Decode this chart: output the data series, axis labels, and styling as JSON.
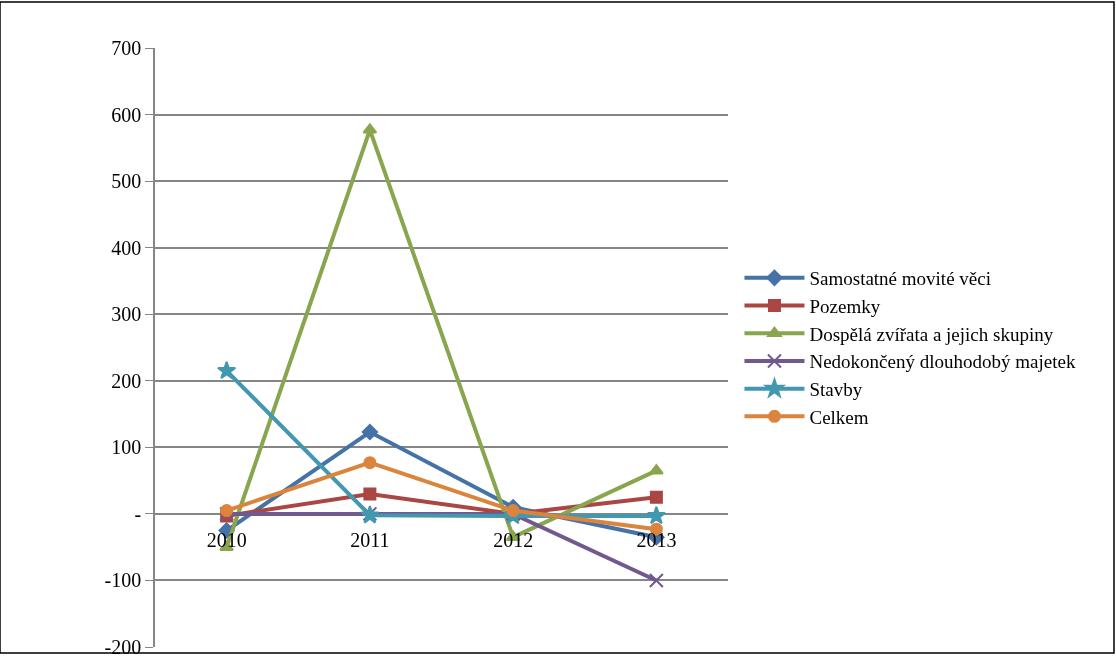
{
  "chart_data": {
    "type": "line",
    "categories": [
      "2010",
      "2011",
      "2012",
      "2013"
    ],
    "series": [
      {
        "name": "Samostatné movité věci",
        "color": "#4572a7",
        "marker": "diamond",
        "values": [
          -25,
          123,
          10,
          -35
        ]
      },
      {
        "name": "Pozemky",
        "color": "#aa4643",
        "marker": "square",
        "values": [
          -3,
          30,
          0,
          25
        ]
      },
      {
        "name": "Dospělá zvířata a jejich skupiny",
        "color": "#89a54e",
        "marker": "triangle",
        "values": [
          -50,
          577,
          -35,
          65
        ]
      },
      {
        "name": "Nedokončený dlouhodobý majetek",
        "color": "#71588f",
        "marker": "cross",
        "values": [
          0,
          0,
          0,
          -100
        ]
      },
      {
        "name": "Stavby",
        "color": "#4198af",
        "marker": "star",
        "values": [
          215,
          -2,
          -3,
          -3
        ]
      },
      {
        "name": "Celkem",
        "color": "#db843d",
        "marker": "circle",
        "values": [
          5,
          77,
          5,
          -23
        ]
      }
    ],
    "ylim": [
      -200,
      700
    ],
    "yticks": [
      -200,
      -100,
      {
        "value": 0,
        "label": "-"
      },
      100,
      200,
      300,
      400,
      500,
      600,
      700
    ],
    "grid": "y",
    "legend": "right"
  }
}
